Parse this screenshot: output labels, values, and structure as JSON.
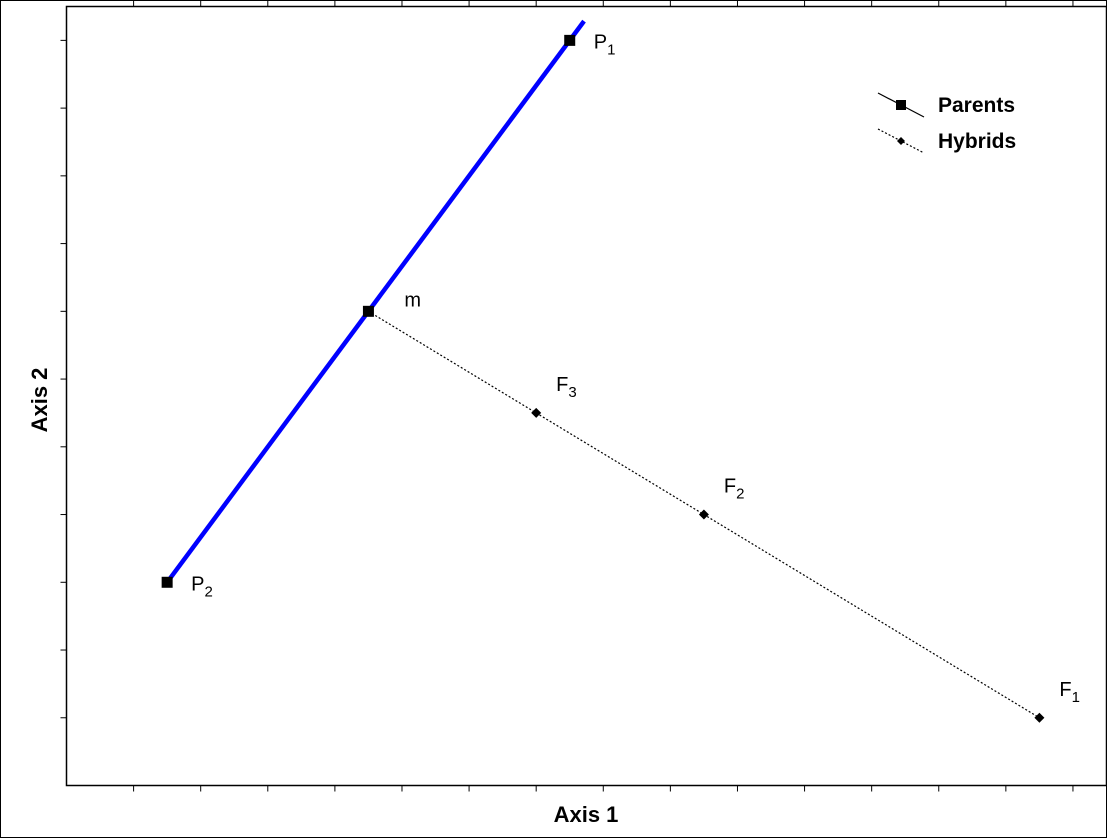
{
  "chart_data": {
    "type": "scatter",
    "title": "",
    "xlabel": "Axis 1",
    "ylabel": "Axis 2",
    "xlim": [
      0,
      15.5
    ],
    "ylim": [
      0,
      11.5
    ],
    "grid": false,
    "legend_position": "top-right",
    "series": [
      {
        "name": "Parents",
        "marker": "square",
        "line": "solid",
        "color": "#0000ff",
        "points": [
          {
            "label": "P",
            "sub": "1",
            "x": 7.5,
            "y": 11
          },
          {
            "label": "m",
            "sub": "",
            "x": 4.5,
            "y": 7
          },
          {
            "label": "P",
            "sub": "2",
            "x": 1.5,
            "y": 3
          }
        ]
      },
      {
        "name": "Hybrids",
        "marker": "diamond",
        "line": "dotted",
        "color": "#000000",
        "points": [
          {
            "label": "m",
            "sub": "",
            "x": 4.5,
            "y": 7,
            "hidden_label": true
          },
          {
            "label": "F",
            "sub": "3",
            "x": 7,
            "y": 5.5
          },
          {
            "label": "F",
            "sub": "2",
            "x": 9.5,
            "y": 4
          },
          {
            "label": "F",
            "sub": "1",
            "x": 14.5,
            "y": 1
          }
        ]
      }
    ]
  }
}
